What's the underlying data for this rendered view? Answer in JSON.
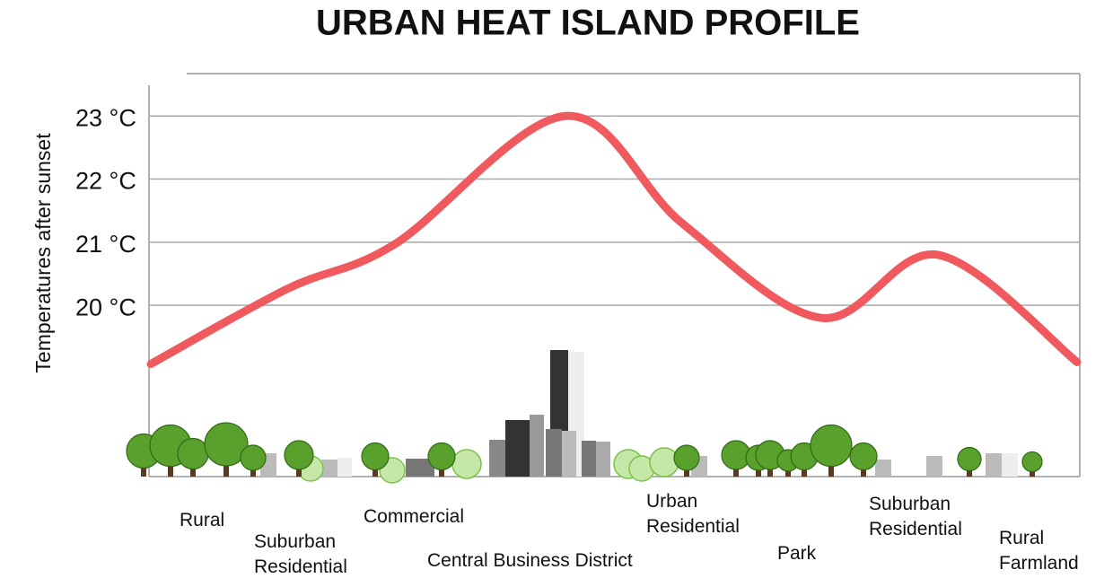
{
  "chart_data": {
    "type": "line",
    "title": "URBAN HEAT ISLAND PROFILE",
    "y_label": "Temperatures after sunset",
    "categories": [
      "Rural",
      "Suburban Residential",
      "Commercial",
      "Central Business District",
      "Urban Residential",
      "Park",
      "Suburban Residential",
      "Rural Farmland"
    ],
    "values": [
      19.07,
      20.26,
      20.97,
      23.0,
      21.3,
      19.8,
      20.8,
      19.1
    ],
    "color": "#f05a5f",
    "ylim": [
      17.3,
      23.7
    ],
    "yticks": [
      {
        "value": 20,
        "label": "20 °C"
      },
      {
        "value": 21,
        "label": "21 °C"
      },
      {
        "value": 22,
        "label": "22 °C"
      },
      {
        "value": 23,
        "label": "23 °C"
      }
    ],
    "grid": true
  }
}
